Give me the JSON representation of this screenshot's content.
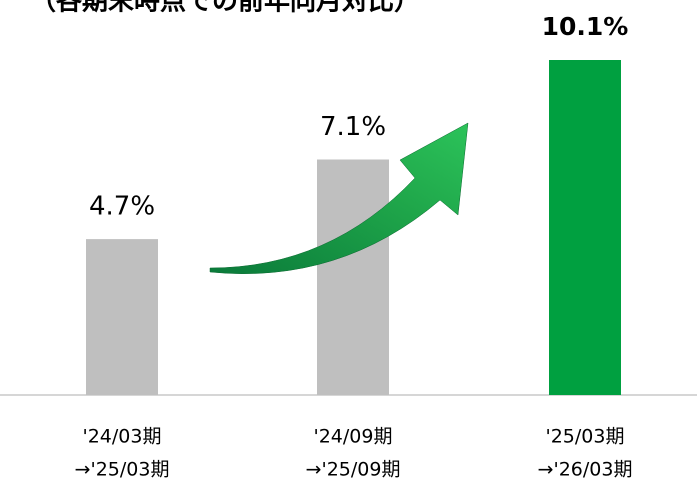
{
  "chart_data": {
    "type": "bar",
    "title": "（各期末時点での前年同月対比）",
    "categories": [
      [
        "'24/03期",
        "→'25/03期"
      ],
      [
        "'24/09期",
        "→'25/09期"
      ],
      [
        "'25/03期",
        "→'26/03期"
      ]
    ],
    "values": [
      4.7,
      7.1,
      10.1
    ],
    "value_labels": [
      "4.7%",
      "7.1%",
      "10.1%"
    ],
    "colors": [
      "#bfbfbf",
      "#bfbfbf",
      "#00a040"
    ],
    "ylim": [
      0,
      10.1
    ]
  }
}
